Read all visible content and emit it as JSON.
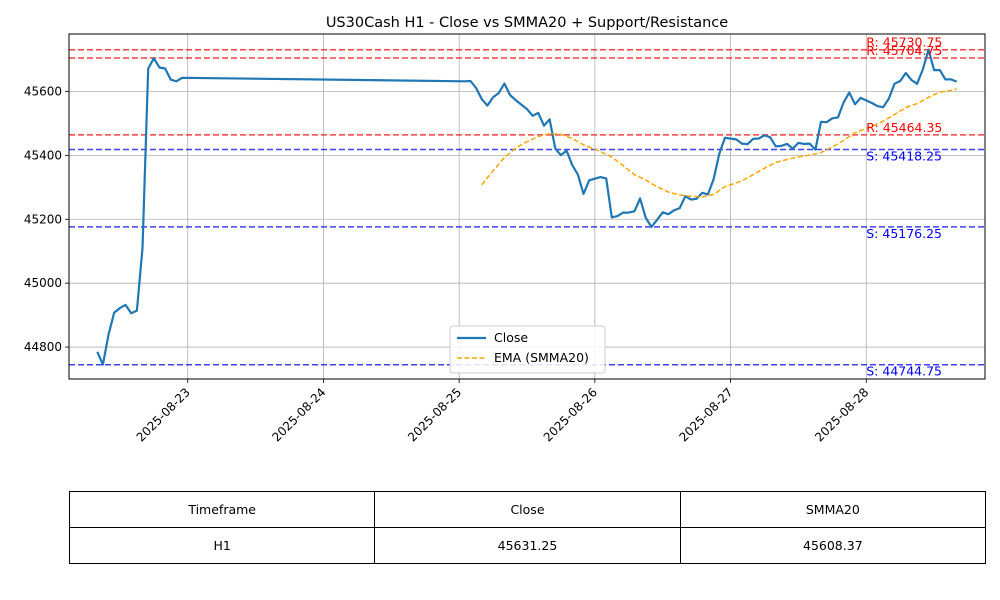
{
  "chart_data": {
    "type": "line",
    "title": "US30Cash H1 - Close vs SMMA20 + Support/Resistance",
    "xlabel": "",
    "ylabel": "",
    "x_range": [
      "2025-08-22 03:00",
      "2025-08-28 21:00"
    ],
    "ylim": [
      44700,
      45780
    ],
    "x_ticks": [
      "2025-08-23",
      "2025-08-24",
      "2025-08-25",
      "2025-08-26",
      "2025-08-27",
      "2025-08-28"
    ],
    "y_ticks": [
      44800,
      45000,
      45200,
      45400,
      45600
    ],
    "grid": true,
    "legend_position": "lower center",
    "series": [
      {
        "name": "Close",
        "color": "#1f77b4",
        "style": "solid",
        "points": [
          [
            "2025-08-22 08:00",
            44785
          ],
          [
            "2025-08-22 09:00",
            44745
          ],
          [
            "2025-08-22 10:00",
            44840
          ],
          [
            "2025-08-22 11:00",
            44908
          ],
          [
            "2025-08-22 12:00",
            44922
          ],
          [
            "2025-08-22 13:00",
            44932
          ],
          [
            "2025-08-22 14:00",
            44906
          ],
          [
            "2025-08-22 15:00",
            44914
          ],
          [
            "2025-08-22 16:00",
            45110
          ],
          [
            "2025-08-22 17:00",
            45672
          ],
          [
            "2025-08-22 18:00",
            45704
          ],
          [
            "2025-08-22 19:00",
            45675
          ],
          [
            "2025-08-22 20:00",
            45672
          ],
          [
            "2025-08-22 21:00",
            45637
          ],
          [
            "2025-08-22 22:00",
            45632
          ],
          [
            "2025-08-22 23:00",
            45643
          ],
          [
            "2025-08-25 01:00",
            45632
          ],
          [
            "2025-08-25 02:00",
            45633
          ],
          [
            "2025-08-25 03:00",
            45611
          ],
          [
            "2025-08-25 04:00",
            45576
          ],
          [
            "2025-08-25 05:00",
            45556
          ],
          [
            "2025-08-25 06:00",
            45582
          ],
          [
            "2025-08-25 07:00",
            45595
          ],
          [
            "2025-08-25 08:00",
            45625
          ],
          [
            "2025-08-25 09:00",
            45589
          ],
          [
            "2025-08-25 10:00",
            45573
          ],
          [
            "2025-08-25 11:00",
            45559
          ],
          [
            "2025-08-25 12:00",
            45545
          ],
          [
            "2025-08-25 13:00",
            45524
          ],
          [
            "2025-08-25 14:00",
            45533
          ],
          [
            "2025-08-25 15:00",
            45493
          ],
          [
            "2025-08-25 16:00",
            45513
          ],
          [
            "2025-08-25 17:00",
            45421
          ],
          [
            "2025-08-25 18:00",
            45401
          ],
          [
            "2025-08-25 19:00",
            45415
          ],
          [
            "2025-08-25 20:00",
            45370
          ],
          [
            "2025-08-25 21:00",
            45340
          ],
          [
            "2025-08-25 22:00",
            45279
          ],
          [
            "2025-08-25 23:00",
            45322
          ],
          [
            "2025-08-26 01:00",
            45332
          ],
          [
            "2025-08-26 02:00",
            45328
          ],
          [
            "2025-08-26 03:00",
            45206
          ],
          [
            "2025-08-26 04:00",
            45210
          ],
          [
            "2025-08-26 05:00",
            45221
          ],
          [
            "2025-08-26 06:00",
            45221
          ],
          [
            "2025-08-26 07:00",
            45225
          ],
          [
            "2025-08-26 08:00",
            45265
          ],
          [
            "2025-08-26 09:00",
            45205
          ],
          [
            "2025-08-26 10:00",
            45176
          ],
          [
            "2025-08-26 11:00",
            45198
          ],
          [
            "2025-08-26 12:00",
            45222
          ],
          [
            "2025-08-26 13:00",
            45216
          ],
          [
            "2025-08-26 14:00",
            45228
          ],
          [
            "2025-08-26 15:00",
            45235
          ],
          [
            "2025-08-26 16:00",
            45272
          ],
          [
            "2025-08-26 17:00",
            45262
          ],
          [
            "2025-08-26 18:00",
            45264
          ],
          [
            "2025-08-26 19:00",
            45283
          ],
          [
            "2025-08-26 20:00",
            45278
          ],
          [
            "2025-08-26 21:00",
            45325
          ],
          [
            "2025-08-26 22:00",
            45404
          ],
          [
            "2025-08-26 23:00",
            45455
          ],
          [
            "2025-08-27 01:00",
            45450
          ],
          [
            "2025-08-27 02:00",
            45437
          ],
          [
            "2025-08-27 03:00",
            45435
          ],
          [
            "2025-08-27 04:00",
            45452
          ],
          [
            "2025-08-27 05:00",
            45453
          ],
          [
            "2025-08-27 06:00",
            45463
          ],
          [
            "2025-08-27 07:00",
            45457
          ],
          [
            "2025-08-27 08:00",
            45428
          ],
          [
            "2025-08-27 09:00",
            45430
          ],
          [
            "2025-08-27 10:00",
            45436
          ],
          [
            "2025-08-27 11:00",
            45421
          ],
          [
            "2025-08-27 12:00",
            45439
          ],
          [
            "2025-08-27 13:00",
            45436
          ],
          [
            "2025-08-27 14:00",
            45437
          ],
          [
            "2025-08-27 15:00",
            45418
          ],
          [
            "2025-08-27 16:00",
            45505
          ],
          [
            "2025-08-27 17:00",
            45504
          ],
          [
            "2025-08-27 18:00",
            45516
          ],
          [
            "2025-08-27 19:00",
            45519
          ],
          [
            "2025-08-27 20:00",
            45566
          ],
          [
            "2025-08-27 21:00",
            45597
          ],
          [
            "2025-08-27 22:00",
            45560
          ],
          [
            "2025-08-27 23:00",
            45580
          ],
          [
            "2025-08-28 01:00",
            45564
          ],
          [
            "2025-08-28 02:00",
            45554
          ],
          [
            "2025-08-28 03:00",
            45551
          ],
          [
            "2025-08-28 04:00",
            45578
          ],
          [
            "2025-08-28 05:00",
            45624
          ],
          [
            "2025-08-28 06:00",
            45633
          ],
          [
            "2025-08-28 07:00",
            45658
          ],
          [
            "2025-08-28 08:00",
            45636
          ],
          [
            "2025-08-28 09:00",
            45624
          ],
          [
            "2025-08-28 10:00",
            45669
          ],
          [
            "2025-08-28 11:00",
            45731
          ],
          [
            "2025-08-28 12:00",
            45667
          ],
          [
            "2025-08-28 13:00",
            45667
          ],
          [
            "2025-08-28 14:00",
            45638
          ],
          [
            "2025-08-28 15:00",
            45638
          ],
          [
            "2025-08-28 16:00",
            45631
          ]
        ]
      },
      {
        "name": "EMA (SMMA20)",
        "color": "#ffa500",
        "style": "dashed",
        "points": [
          [
            "2025-08-25 04:00",
            45308
          ],
          [
            "2025-08-25 06:00",
            45352
          ],
          [
            "2025-08-25 08:00",
            45393
          ],
          [
            "2025-08-25 10:00",
            45423
          ],
          [
            "2025-08-25 12:00",
            45443
          ],
          [
            "2025-08-25 14:00",
            45459
          ],
          [
            "2025-08-25 16:00",
            45468
          ],
          [
            "2025-08-25 18:00",
            45466
          ],
          [
            "2025-08-25 20:00",
            45453
          ],
          [
            "2025-08-25 22:00",
            45433
          ],
          [
            "2025-08-26 01:00",
            45412
          ],
          [
            "2025-08-26 03:00",
            45395
          ],
          [
            "2025-08-26 05:00",
            45368
          ],
          [
            "2025-08-26 07:00",
            45340
          ],
          [
            "2025-08-26 09:00",
            45323
          ],
          [
            "2025-08-26 11:00",
            45302
          ],
          [
            "2025-08-26 13:00",
            45285
          ],
          [
            "2025-08-26 15:00",
            45276
          ],
          [
            "2025-08-26 17:00",
            45272
          ],
          [
            "2025-08-26 19:00",
            45270
          ],
          [
            "2025-08-26 21:00",
            45278
          ],
          [
            "2025-08-26 23:00",
            45302
          ],
          [
            "2025-08-27 02:00",
            45320
          ],
          [
            "2025-08-27 04:00",
            45340
          ],
          [
            "2025-08-27 06:00",
            45360
          ],
          [
            "2025-08-27 08:00",
            45378
          ],
          [
            "2025-08-27 10:00",
            45387
          ],
          [
            "2025-08-27 12:00",
            45395
          ],
          [
            "2025-08-27 14:00",
            45401
          ],
          [
            "2025-08-27 16:00",
            45409
          ],
          [
            "2025-08-27 18:00",
            45426
          ],
          [
            "2025-08-27 20:00",
            45447
          ],
          [
            "2025-08-27 22:00",
            45471
          ],
          [
            "2025-08-28 01:00",
            45491
          ],
          [
            "2025-08-28 03:00",
            45507
          ],
          [
            "2025-08-28 05:00",
            45528
          ],
          [
            "2025-08-28 07:00",
            45550
          ],
          [
            "2025-08-28 09:00",
            45562
          ],
          [
            "2025-08-28 11:00",
            45582
          ],
          [
            "2025-08-28 13:00",
            45598
          ],
          [
            "2025-08-28 15:00",
            45603
          ],
          [
            "2025-08-28 16:00",
            45608
          ]
        ]
      }
    ],
    "levels": [
      {
        "kind": "resistance",
        "value": 45730.75,
        "label": "R: 45730.75",
        "color": "#ff0000"
      },
      {
        "kind": "resistance",
        "value": 45704.75,
        "label": "R: 45704.75",
        "color": "#ff0000"
      },
      {
        "kind": "resistance",
        "value": 45464.35,
        "label": "R: 45464.35",
        "color": "#ff0000"
      },
      {
        "kind": "support",
        "value": 45418.25,
        "label": "S: 45418.25",
        "color": "#0000ff"
      },
      {
        "kind": "support",
        "value": 45176.25,
        "label": "S: 45176.25",
        "color": "#0000ff"
      },
      {
        "kind": "support",
        "value": 44744.75,
        "label": "S: 44744.75",
        "color": "#0000ff"
      }
    ]
  },
  "table": {
    "headers": [
      "Timeframe",
      "Close",
      "SMMA20"
    ],
    "rows": [
      [
        "H1",
        "45631.25",
        "45608.37"
      ]
    ]
  }
}
